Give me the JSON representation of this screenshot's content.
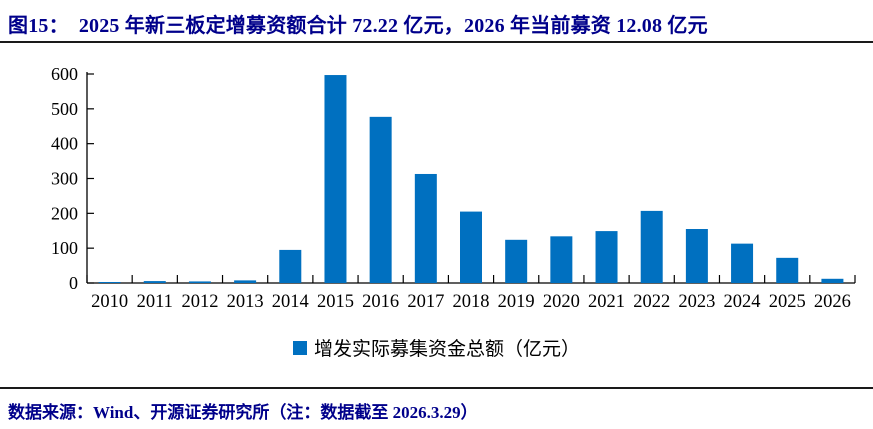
{
  "header": {
    "label": "图15：",
    "text": "2025 年新三板定增募资额合计 72.22 亿元，2026 年当前募资 12.08 亿元"
  },
  "chart_data": {
    "type": "bar",
    "title": "",
    "categories": [
      "2010",
      "2011",
      "2012",
      "2013",
      "2014",
      "2015",
      "2016",
      "2017",
      "2018",
      "2019",
      "2020",
      "2021",
      "2022",
      "2023",
      "2024",
      "2025",
      "2026"
    ],
    "values": [
      2.5,
      5.5,
      4.5,
      7.5,
      95,
      597,
      477,
      313,
      205,
      124,
      134,
      149,
      207,
      155,
      113,
      72.22,
      12.08
    ],
    "legend": "增发实际募集资金总额（亿元）",
    "xlabel": "",
    "ylabel": "",
    "ylim": [
      0,
      600
    ],
    "ytick_step": 100,
    "grid": false,
    "legend_position": "bottom",
    "bar_color": "#0070C0"
  },
  "footer": {
    "source": "数据来源：Wind、开源证券研究所（注：数据截至 2026.3.29）"
  },
  "colors": {
    "accent_navy": "#00008B",
    "bar_blue": "#0070C0",
    "axis_black": "#000000"
  }
}
